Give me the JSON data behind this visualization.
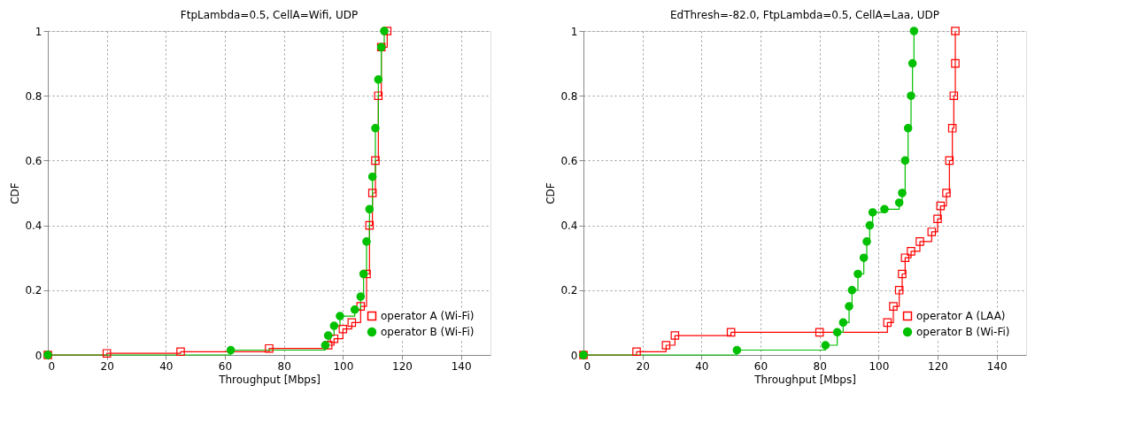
{
  "chart_data": [
    {
      "type": "step",
      "title": "FtpLambda=0.5, CellA=Wifi, UDP",
      "xlabel": "Throughput [Mbps]",
      "ylabel": "CDF",
      "xlim": [
        0,
        150
      ],
      "xticks": [
        0,
        20,
        40,
        60,
        80,
        100,
        120,
        140
      ],
      "ylim": [
        0,
        1
      ],
      "yticks": [
        0,
        0.2,
        0.4,
        0.6,
        0.8,
        1
      ],
      "grid": true,
      "legend": "bottom right",
      "series": [
        {
          "name": "operator A (Wi-Fi)",
          "color": "#ff0000",
          "marker": "square",
          "x": [
            0,
            20,
            45,
            75,
            95,
            97,
            100,
            103,
            106,
            108,
            109,
            110,
            111,
            112,
            113,
            115
          ],
          "values": [
            0,
            0.005,
            0.01,
            0.02,
            0.03,
            0.05,
            0.08,
            0.1,
            0.15,
            0.25,
            0.4,
            0.5,
            0.6,
            0.8,
            0.95,
            1
          ]
        },
        {
          "name": "operator B (Wi-Fi)",
          "color": "#00c000",
          "marker": "circle",
          "x": [
            0,
            62,
            94,
            95,
            97,
            99,
            104,
            106,
            107,
            108,
            109,
            110,
            111,
            112,
            113,
            114
          ],
          "values": [
            0,
            0.015,
            0.03,
            0.06,
            0.09,
            0.12,
            0.14,
            0.18,
            0.25,
            0.35,
            0.45,
            0.55,
            0.7,
            0.85,
            0.95,
            1
          ]
        }
      ]
    },
    {
      "type": "step",
      "title": "EdThresh=-82.0, FtpLambda=0.5, CellA=Laa, UDP",
      "xlabel": "Throughput [Mbps]",
      "ylabel": "CDF",
      "xlim": [
        0,
        150
      ],
      "xticks": [
        0,
        20,
        40,
        60,
        80,
        100,
        120,
        140
      ],
      "ylim": [
        0,
        1
      ],
      "yticks": [
        0,
        0.2,
        0.4,
        0.6,
        0.8,
        1
      ],
      "grid": true,
      "legend": "bottom right",
      "series": [
        {
          "name": "operator A (LAA)",
          "color": "#ff0000",
          "marker": "square",
          "x": [
            0,
            18,
            28,
            31,
            50,
            80,
            103,
            105,
            107,
            108,
            109,
            111,
            114,
            118,
            120,
            121,
            123,
            124,
            125,
            125.5,
            126,
            126
          ],
          "values": [
            0,
            0.01,
            0.03,
            0.06,
            0.07,
            0.07,
            0.1,
            0.15,
            0.2,
            0.25,
            0.3,
            0.32,
            0.35,
            0.38,
            0.42,
            0.46,
            0.5,
            0.6,
            0.7,
            0.8,
            0.9,
            1
          ]
        },
        {
          "name": "operator B (Wi-Fi)",
          "color": "#00c000",
          "marker": "circle",
          "x": [
            0,
            52,
            82,
            86,
            88,
            90,
            91,
            93,
            95,
            96,
            97,
            98,
            102,
            107,
            108,
            109,
            110,
            111,
            111.5,
            112
          ],
          "values": [
            0,
            0.015,
            0.03,
            0.07,
            0.1,
            0.15,
            0.2,
            0.25,
            0.3,
            0.35,
            0.4,
            0.44,
            0.45,
            0.47,
            0.5,
            0.6,
            0.7,
            0.8,
            0.9,
            1
          ]
        }
      ]
    }
  ]
}
